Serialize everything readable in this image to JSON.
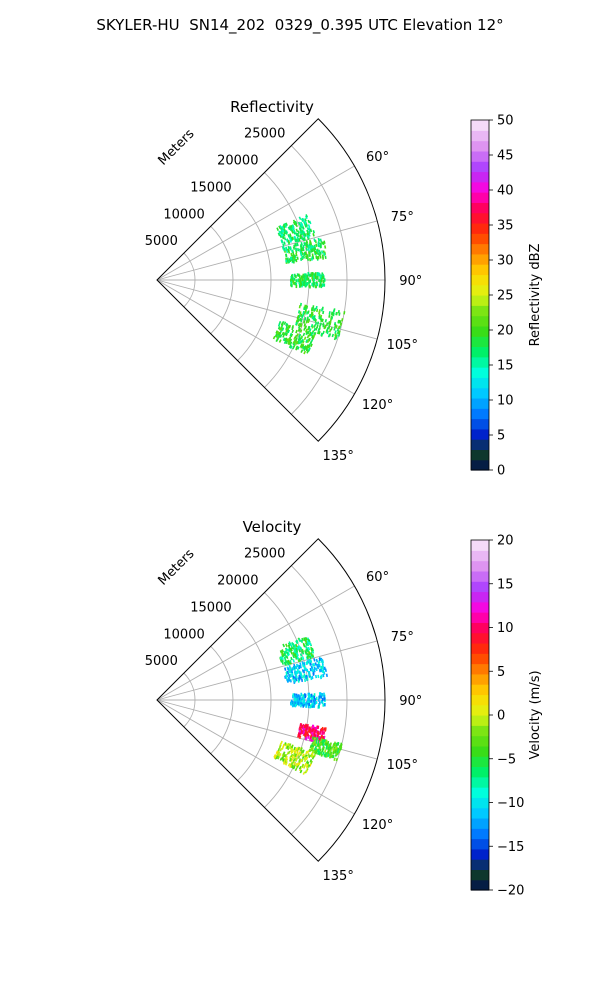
{
  "figure": {
    "suptitle": "SKYLER-HU  SN14_202  0329_0.395 UTC Elevation 12°"
  },
  "chart_data": [
    {
      "type": "polar-sector-scatter",
      "title": "Reflectivity",
      "radial_label": "Meters",
      "radial_ticks": [
        5000,
        10000,
        15000,
        20000,
        25000
      ],
      "radial_tick_labels": [
        "5000",
        "10000",
        "15000",
        "20000",
        "25000"
      ],
      "rlim": [
        0,
        30000
      ],
      "theta_range_deg": [
        45,
        135
      ],
      "theta_ticks": [
        60,
        75,
        90,
        105,
        120,
        135
      ],
      "theta_tick_labels": [
        "60°",
        "75°",
        "90°",
        "105°",
        "120°",
        "135°"
      ],
      "grid": true,
      "colorbar": {
        "label": "Reflectivity dBZ",
        "range": [
          0,
          50
        ],
        "ticks": [
          0,
          5,
          10,
          15,
          20,
          25,
          30,
          35,
          40,
          45,
          50
        ],
        "tick_labels": [
          "0",
          "5",
          "10",
          "15",
          "20",
          "25",
          "30",
          "35",
          "40",
          "45",
          "50"
        ]
      },
      "echo_clusters": [
        {
          "theta_deg": [
            66,
            74
          ],
          "r_m": [
            17000,
            21500
          ],
          "value": 17
        },
        {
          "theta_deg": [
            75,
            82
          ],
          "r_m": [
            17000,
            22500
          ],
          "value": 18
        },
        {
          "theta_deg": [
            87,
            92
          ],
          "r_m": [
            17500,
            22000
          ],
          "value": 18
        },
        {
          "theta_deg": [
            99,
            108
          ],
          "r_m": [
            19000,
            25000
          ],
          "value": 19
        },
        {
          "theta_deg": [
            108,
            116
          ],
          "r_m": [
            17000,
            22000
          ],
          "value": 19
        }
      ]
    },
    {
      "type": "polar-sector-scatter",
      "title": "Velocity",
      "radial_label": "Meters",
      "radial_ticks": [
        5000,
        10000,
        15000,
        20000,
        25000
      ],
      "radial_tick_labels": [
        "5000",
        "10000",
        "15000",
        "20000",
        "25000"
      ],
      "rlim": [
        0,
        30000
      ],
      "theta_range_deg": [
        45,
        135
      ],
      "theta_ticks": [
        60,
        75,
        90,
        105,
        120,
        135
      ],
      "theta_tick_labels": [
        "60°",
        "75°",
        "90°",
        "105°",
        "120°",
        "135°"
      ],
      "grid": true,
      "colorbar": {
        "label": "Velocity (m/s)",
        "range": [
          -20,
          20
        ],
        "ticks": [
          -20,
          -15,
          -10,
          -5,
          0,
          5,
          10,
          15,
          20
        ],
        "tick_labels": [
          "−20",
          "−15",
          "−10",
          "−5",
          "0",
          "5",
          "10",
          "15",
          "20"
        ]
      },
      "echo_clusters": [
        {
          "theta_deg": [
            66,
            74
          ],
          "r_m": [
            17000,
            21500
          ],
          "value": -6
        },
        {
          "theta_deg": [
            75,
            82
          ],
          "r_m": [
            17000,
            22500
          ],
          "value": -11
        },
        {
          "theta_deg": [
            87,
            92
          ],
          "r_m": [
            17500,
            22000
          ],
          "value": -11
        },
        {
          "theta_deg": [
            99,
            104
          ],
          "r_m": [
            19000,
            22500
          ],
          "value": 10
        },
        {
          "theta_deg": [
            103,
            108
          ],
          "r_m": [
            21000,
            25000
          ],
          "value": -4
        },
        {
          "theta_deg": [
            108,
            116
          ],
          "r_m": [
            17000,
            22000
          ],
          "value": -1
        }
      ]
    }
  ]
}
